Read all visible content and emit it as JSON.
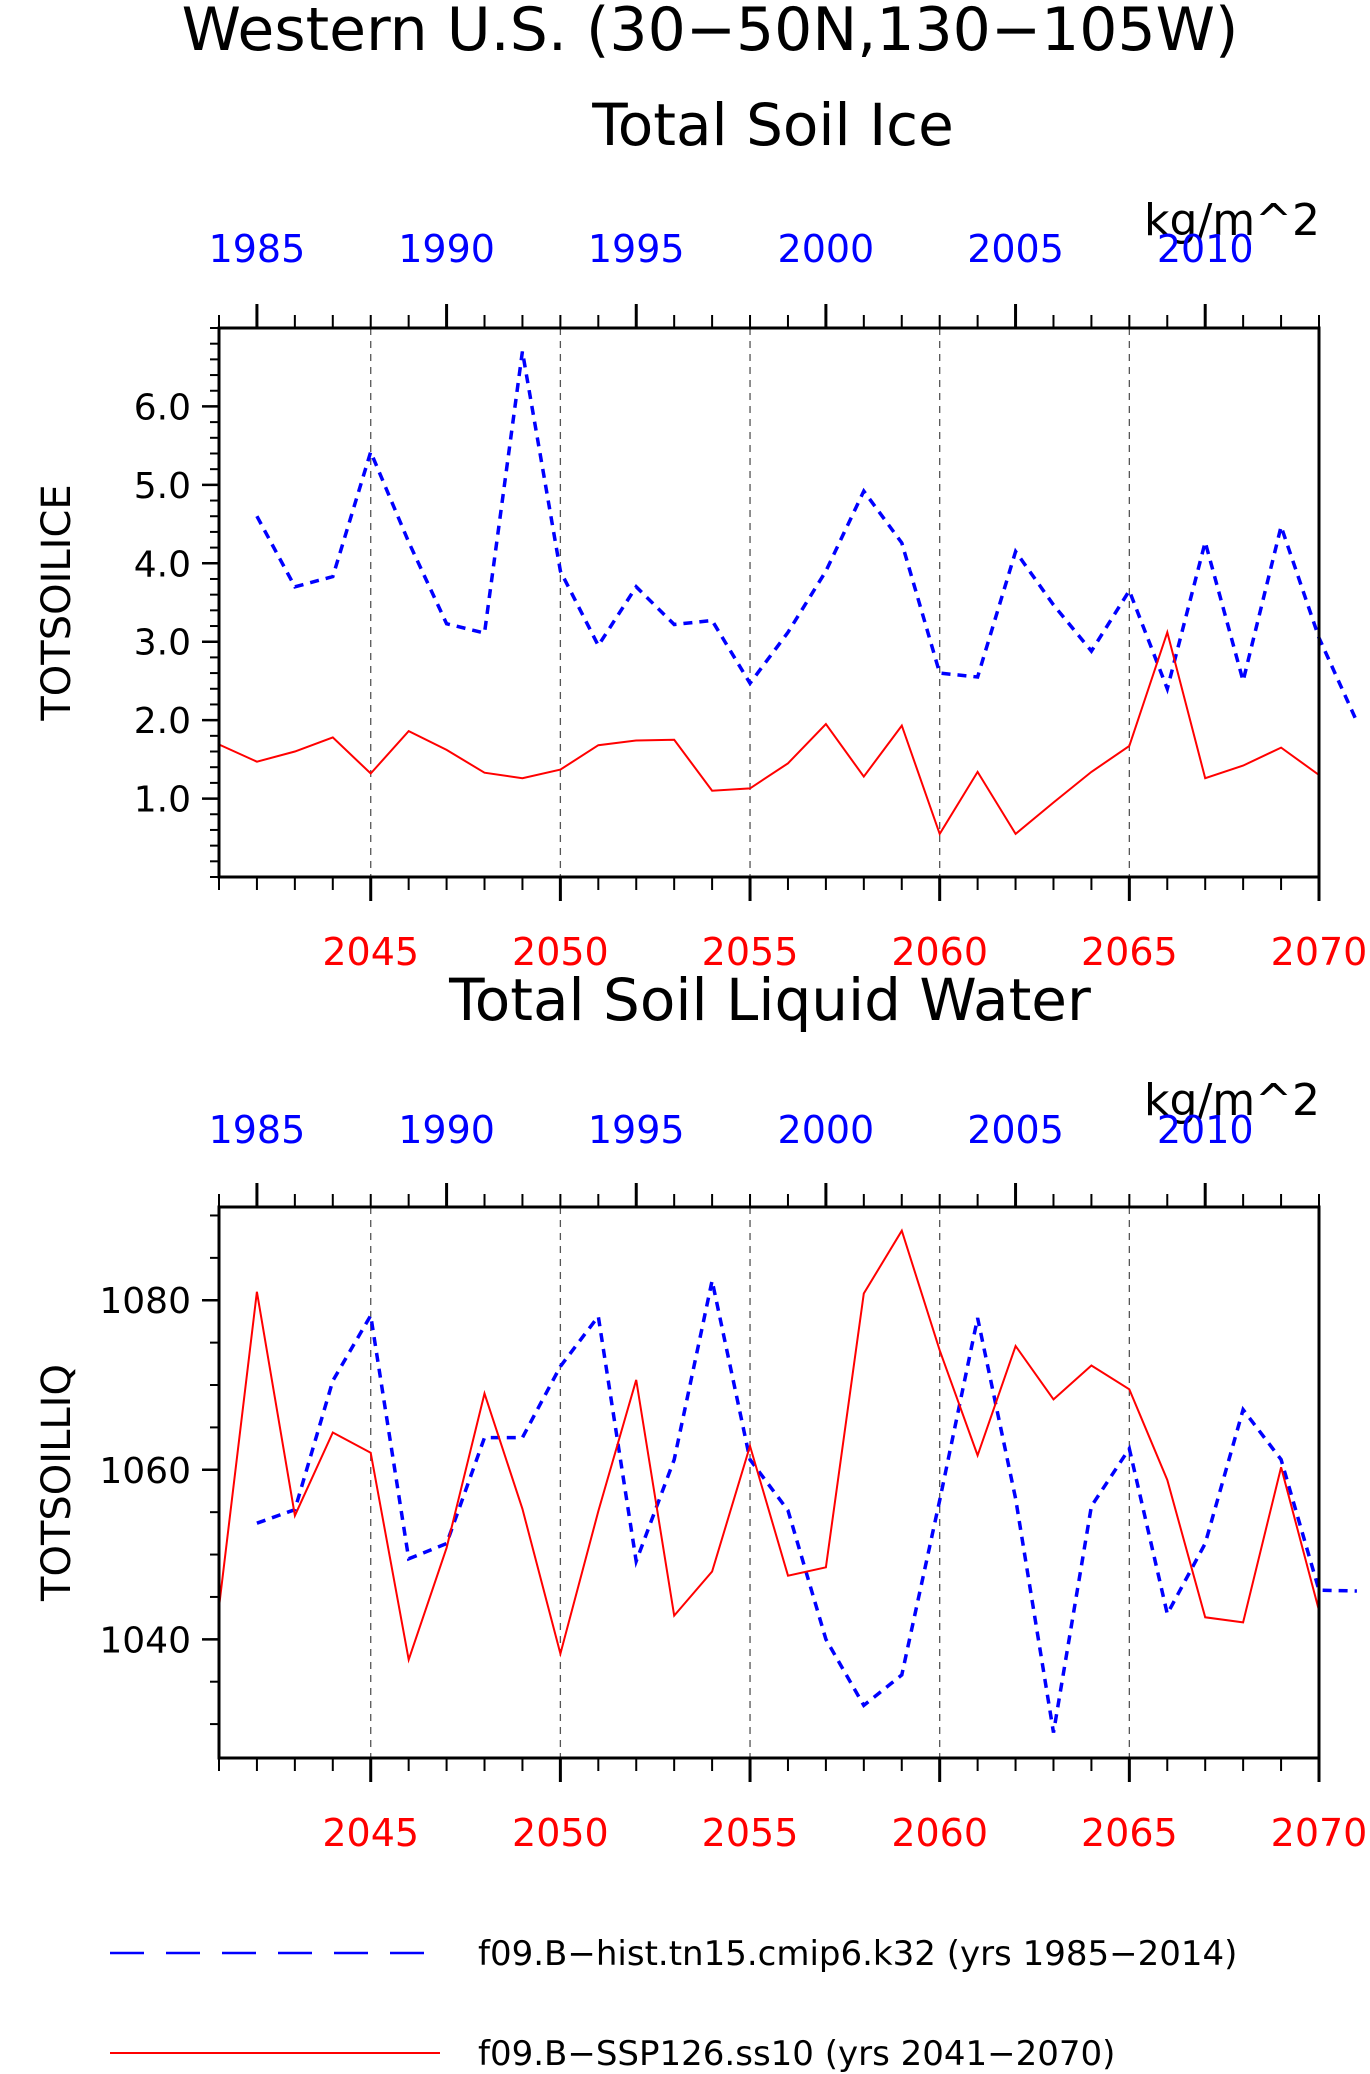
{
  "page_title_line1": "Western U.S. (30−50N,130−105W)",
  "colors": {
    "hist": "#0000ff",
    "ssp": "#ff0000",
    "axis": "#000000",
    "grid": "#555555"
  },
  "legend": [
    {
      "label": "f09.B−hist.tn15.cmip6.k32 (yrs 1985−2014)",
      "style": "dashed",
      "color": "#0000ff"
    },
    {
      "label": "f09.B−SSP126.ss10 (yrs 2041−2070)",
      "style": "solid",
      "color": "#ff0000"
    }
  ],
  "chart_data": [
    {
      "type": "line",
      "title": "Total Soil Ice",
      "units": "kg/m^2",
      "ylabel": "TOTSOILICE",
      "ylim": [
        0,
        7
      ],
      "yticks": [
        1,
        2,
        3,
        4,
        5,
        6
      ],
      "ytick_labels": [
        "1.0",
        "2.0",
        "3.0",
        "4.0",
        "5.0",
        "6.0"
      ],
      "top_xticks": [
        "1985",
        "1990",
        "1995",
        "2000",
        "2005",
        "2010"
      ],
      "bottom_xticks": [
        "2045",
        "2050",
        "2055",
        "2060",
        "2065",
        "2070"
      ],
      "series": [
        {
          "name": "f09.B-hist.tn15.cmip6.k32 (yrs 1985-2014)",
          "axis": "top",
          "style": "dashed",
          "x": [
            1985,
            1986,
            1987,
            1988,
            1989,
            1990,
            1991,
            1992,
            1993,
            1994,
            1995,
            1996,
            1997,
            1998,
            1999,
            2000,
            2001,
            2002,
            2003,
            2004,
            2005,
            2006,
            2007,
            2008,
            2009,
            2010,
            2011,
            2012,
            2013,
            2014
          ],
          "values": [
            4.6,
            3.7,
            3.83,
            5.42,
            4.27,
            3.23,
            3.11,
            6.7,
            3.9,
            2.95,
            3.7,
            3.22,
            3.27,
            2.47,
            3.12,
            3.9,
            4.92,
            4.26,
            2.6,
            2.55,
            4.15,
            3.47,
            2.88,
            3.65,
            2.4,
            4.27,
            2.5,
            4.47,
            3.05,
            1.98
          ]
        },
        {
          "name": "f09.B-SSP126.ss10 (yrs 2041-2070)",
          "axis": "bottom",
          "style": "solid",
          "x": [
            2041,
            2042,
            2043,
            2044,
            2045,
            2046,
            2047,
            2048,
            2049,
            2050,
            2051,
            2052,
            2053,
            2054,
            2055,
            2056,
            2057,
            2058,
            2059,
            2060,
            2061,
            2062,
            2063,
            2064,
            2065,
            2066,
            2067,
            2068,
            2069,
            2070
          ],
          "values": [
            1.69,
            1.47,
            1.6,
            1.78,
            1.32,
            1.86,
            1.62,
            1.33,
            1.26,
            1.37,
            1.68,
            1.74,
            1.75,
            1.1,
            1.13,
            1.45,
            1.95,
            1.28,
            1.93,
            0.55,
            1.34,
            0.55,
            0.95,
            1.34,
            1.67,
            3.12,
            1.26,
            1.42,
            1.65,
            1.3
          ]
        }
      ]
    },
    {
      "type": "line",
      "title": "Total Soil Liquid Water",
      "units": "kg/m^2",
      "ylabel": "TOTSOILLIQ",
      "ylim": [
        1026,
        1091
      ],
      "yticks": [
        1040,
        1060,
        1080
      ],
      "ytick_labels": [
        "1040",
        "1060",
        "1080"
      ],
      "top_xticks": [
        "1985",
        "1990",
        "1995",
        "2000",
        "2005",
        "2010"
      ],
      "bottom_xticks": [
        "2045",
        "2050",
        "2055",
        "2060",
        "2065",
        "2070"
      ],
      "series": [
        {
          "name": "f09.B-hist.tn15.cmip6.k32 (yrs 1985-2014)",
          "axis": "top",
          "style": "dashed",
          "x": [
            1985,
            1986,
            1987,
            1988,
            1989,
            1990,
            1991,
            1992,
            1993,
            1994,
            1995,
            1996,
            1997,
            1998,
            1999,
            2000,
            2001,
            2002,
            2003,
            2004,
            2005,
            2006,
            2007,
            2008,
            2009,
            2010,
            2011,
            2012,
            2013,
            2014
          ],
          "values": [
            1053.7,
            1055.3,
            1070.5,
            1078.2,
            1049.5,
            1051.3,
            1063.8,
            1063.8,
            1072.2,
            1078.1,
            1049.2,
            1061.2,
            1082.3,
            1061.2,
            1055.2,
            1040.0,
            1032.2,
            1035.8,
            1056.4,
            1077.9,
            1056.6,
            1029.0,
            1055.7,
            1062.5,
            1043.0,
            1051.3,
            1067.1,
            1061.2,
            1045.8,
            1045.7
          ]
        },
        {
          "name": "f09.B-SSP126.ss10 (yrs 2041-2070)",
          "axis": "bottom",
          "style": "solid",
          "x": [
            2041,
            2042,
            2043,
            2044,
            2045,
            2046,
            2047,
            2048,
            2049,
            2050,
            2051,
            2052,
            2053,
            2054,
            2055,
            2056,
            2057,
            2058,
            2059,
            2060,
            2061,
            2062,
            2063,
            2064,
            2065,
            2066,
            2067,
            2068,
            2069,
            2070
          ],
          "values": [
            1043.8,
            1081.0,
            1054.6,
            1064.4,
            1062.0,
            1037.6,
            1050.8,
            1069.0,
            1055.4,
            1038.3,
            1055.1,
            1070.6,
            1042.8,
            1048.0,
            1062.8,
            1047.5,
            1048.5,
            1080.8,
            1088.2,
            1074.1,
            1061.7,
            1074.6,
            1068.3,
            1072.3,
            1069.5,
            1058.8,
            1042.6,
            1042.0,
            1060.3,
            1043.4
          ]
        }
      ]
    }
  ]
}
